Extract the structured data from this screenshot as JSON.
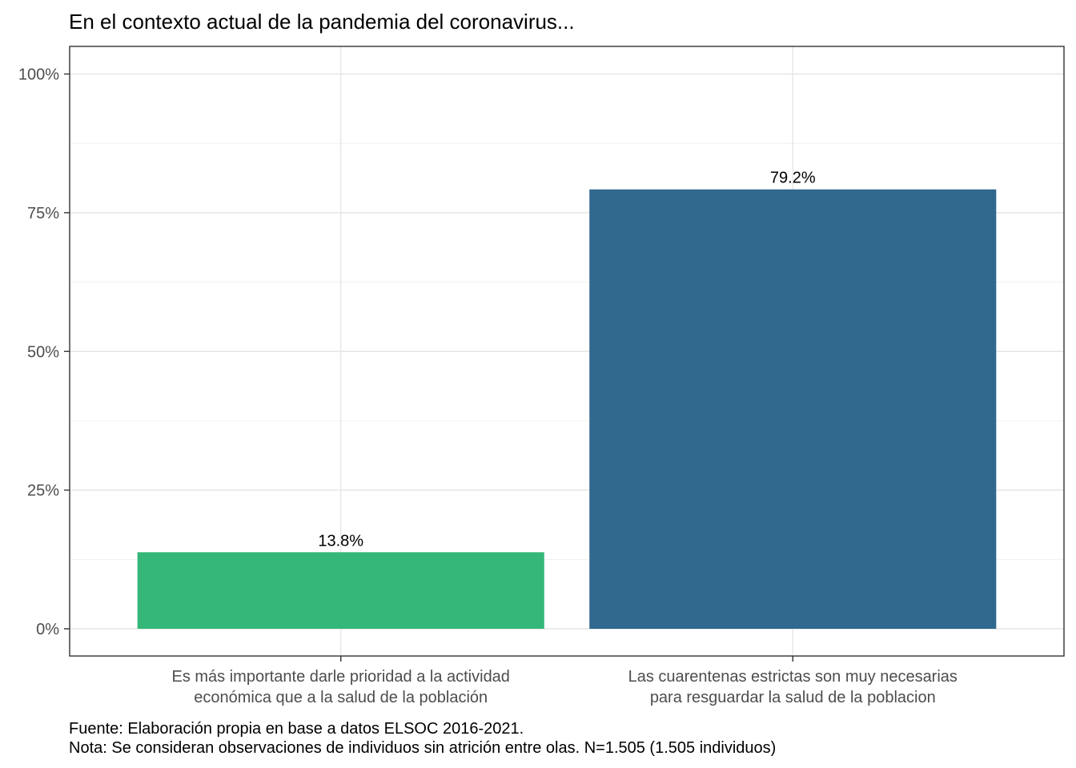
{
  "chart_data": {
    "type": "bar",
    "title": "En el contexto actual de la pandemia del coronavirus...",
    "xlabel": "",
    "ylabel": "",
    "categories": [
      [
        "Es más importante darle prioridad a la actividad",
        "económica que a la salud de la población"
      ],
      [
        "Las cuarentenas estrictas son muy necesarias",
        "para resguardar la salud de la poblacion"
      ]
    ],
    "values": [
      13.8,
      79.2
    ],
    "value_labels": [
      "13.8%",
      "79.2%"
    ],
    "colors": [
      "#35b779",
      "#31688e"
    ],
    "ylim": [
      0,
      100
    ],
    "yticks": [
      0,
      25,
      50,
      75,
      100
    ],
    "ytick_labels": [
      "0%",
      "25%",
      "50%",
      "75%",
      "100%"
    ],
    "grid": true,
    "legend": "none"
  },
  "caption": {
    "source": "Fuente: Elaboración propia en base a datos ELSOC 2016-2021.",
    "note": "Nota: Se consideran observaciones de individuos sin atrición entre olas. N=1.505 (1.505 individuos)"
  }
}
